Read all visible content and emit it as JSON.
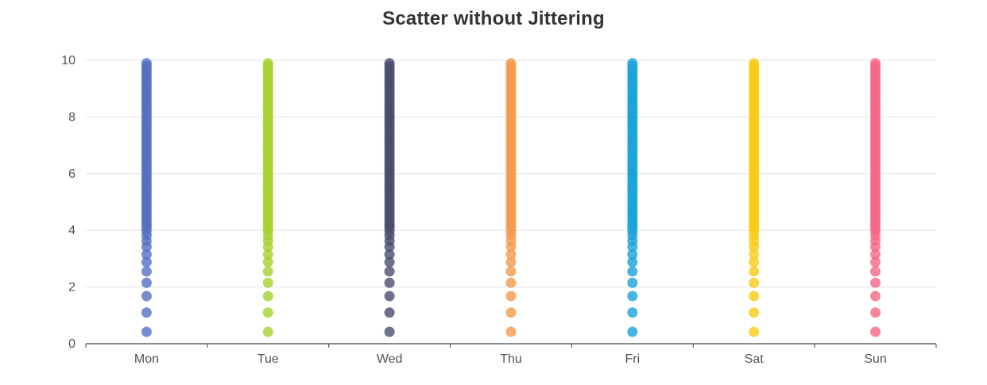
{
  "chart_data": {
    "type": "scatter",
    "title": "Scatter without Jittering",
    "xlabel": "",
    "ylabel": "",
    "categories": [
      "Mon",
      "Tue",
      "Wed",
      "Thu",
      "Fri",
      "Sat",
      "Sun"
    ],
    "ylim": [
      0,
      10
    ],
    "yticks": [
      "0",
      "2",
      "4",
      "6",
      "8",
      "10"
    ],
    "grid": true,
    "legend": "none",
    "colors": [
      "#5470c6",
      "#a8d12f",
      "#4a4e6e",
      "#f59a4d",
      "#1aa3d9",
      "#f8cc14",
      "#f56686"
    ],
    "y_values": [
      0.42,
      1.1,
      1.68,
      2.15,
      2.55,
      2.88,
      3.15,
      3.42,
      3.63,
      3.82,
      3.98,
      4.1,
      4.2,
      4.3,
      4.4,
      4.5,
      4.6,
      4.7,
      4.8,
      4.9,
      5.0,
      5.1,
      5.2,
      5.3,
      5.4,
      5.5,
      5.6,
      5.7,
      5.8,
      5.9,
      6.0,
      6.1,
      6.2,
      6.3,
      6.4,
      6.5,
      6.6,
      6.7,
      6.8,
      6.9,
      7.0,
      7.1,
      7.2,
      7.3,
      7.4,
      7.5,
      7.6,
      7.7,
      7.8,
      7.9,
      8.0,
      8.1,
      8.2,
      8.3,
      8.4,
      8.5,
      8.6,
      8.7,
      8.8,
      8.9,
      9.0,
      9.1,
      9.2,
      9.3,
      9.4,
      9.5,
      9.6,
      9.7,
      9.8,
      9.9
    ]
  }
}
